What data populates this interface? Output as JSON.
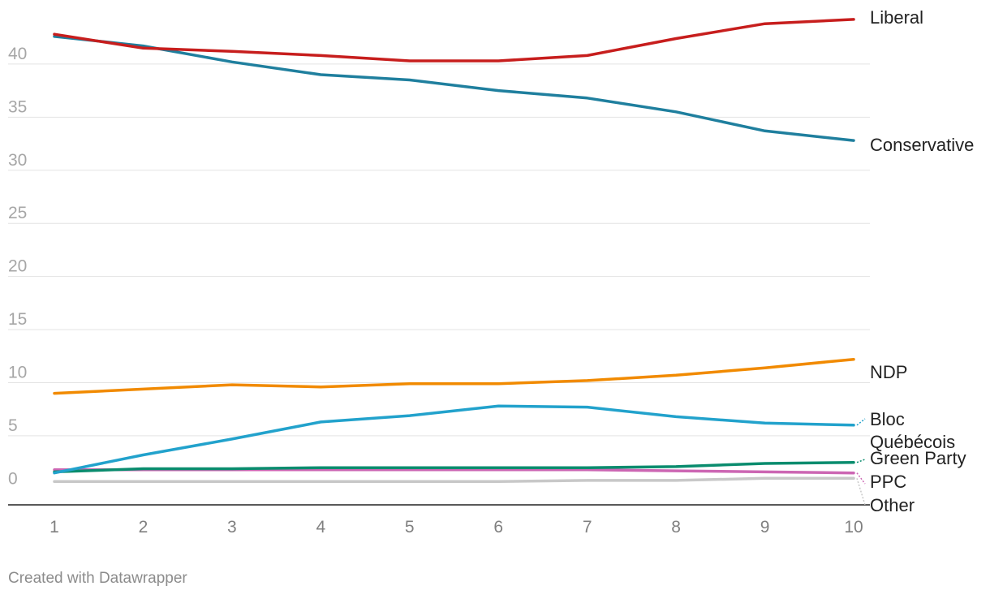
{
  "chart_data": {
    "type": "line",
    "x": [
      1,
      2,
      3,
      4,
      5,
      6,
      7,
      8,
      9,
      10
    ],
    "ylim": [
      -1.5,
      44.5
    ],
    "yticks": [
      0,
      5,
      10,
      15,
      20,
      25,
      30,
      35,
      40
    ],
    "grid": true,
    "legend": "labels at right end of lines",
    "series": [
      {
        "name": "Liberal",
        "color": "#c71e1d",
        "values": [
          42.8,
          41.5,
          41.2,
          40.8,
          40.3,
          40.3,
          40.8,
          42.4,
          43.8,
          44.2
        ]
      },
      {
        "name": "Conservative",
        "color": "#1f7f9e",
        "values": [
          42.6,
          41.7,
          40.2,
          39.0,
          38.5,
          37.5,
          36.8,
          35.5,
          33.7,
          32.8
        ]
      },
      {
        "name": "NDP",
        "color": "#f18a00",
        "values": [
          9.0,
          9.4,
          9.8,
          9.6,
          9.9,
          9.9,
          10.2,
          10.7,
          11.4,
          12.2
        ]
      },
      {
        "name": "Bloc Québécois",
        "color": "#22a2cc",
        "values": [
          1.5,
          3.2,
          4.7,
          6.3,
          6.9,
          7.8,
          7.7,
          6.8,
          6.2,
          6.0
        ]
      },
      {
        "name": "Green Party",
        "color": "#0a8c6e",
        "values": [
          1.6,
          1.9,
          1.9,
          2.0,
          2.0,
          2.0,
          2.0,
          2.1,
          2.4,
          2.5
        ]
      },
      {
        "name": "PPC",
        "color": "#cc66b3",
        "values": [
          1.8,
          1.8,
          1.8,
          1.8,
          1.8,
          1.8,
          1.8,
          1.7,
          1.6,
          1.5
        ]
      },
      {
        "name": "Other",
        "color": "#c8c8c8",
        "values": [
          0.7,
          0.7,
          0.7,
          0.7,
          0.7,
          0.7,
          0.8,
          0.8,
          1.0,
          1.0
        ]
      }
    ]
  },
  "labels": {
    "liberal": "Liberal",
    "conservative": "Conservative",
    "ndp": "NDP",
    "bloc_line1": "Bloc",
    "bloc_line2": "Québécois",
    "green": "Green Party",
    "ppc": "PPC",
    "other": "Other"
  },
  "footer": {
    "credit": "Created with Datawrapper"
  }
}
